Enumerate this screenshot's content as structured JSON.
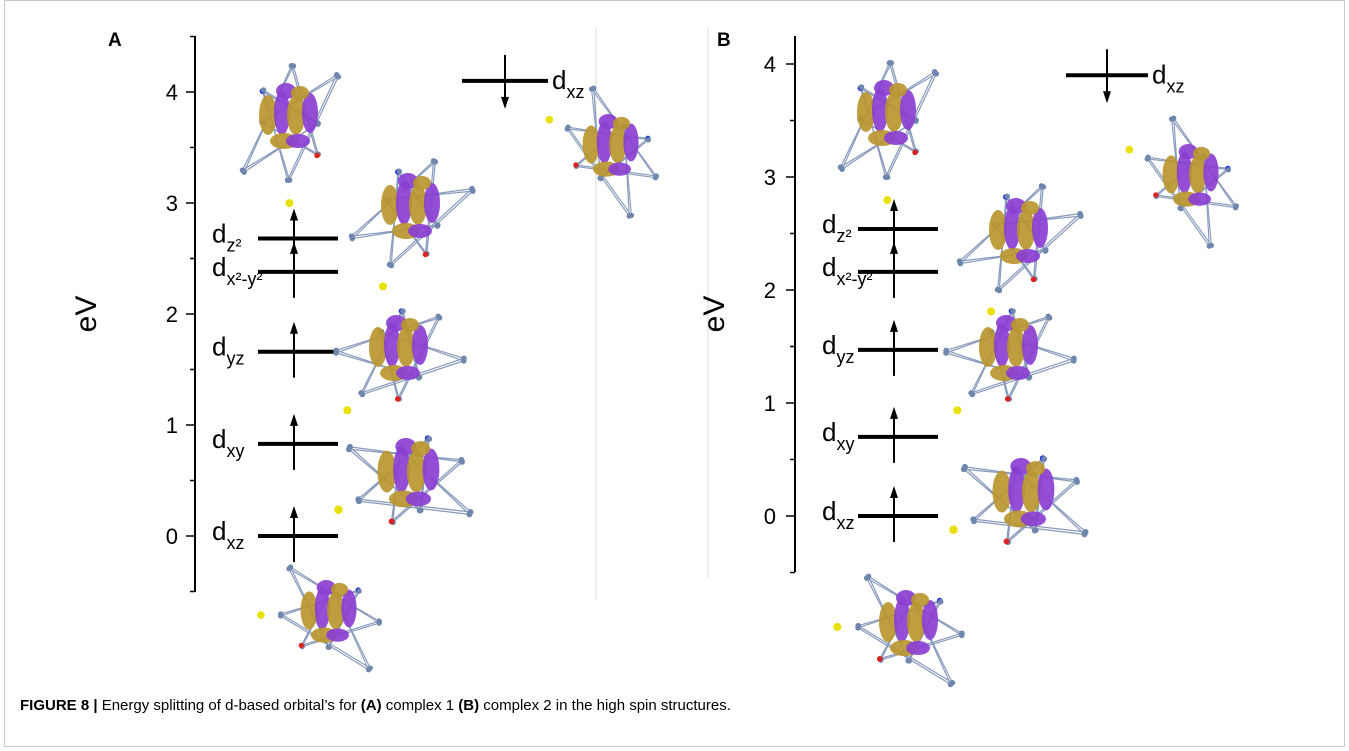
{
  "figure": {
    "panels": [
      {
        "letter": "A",
        "axis_label": "eV",
        "ticks": [
          "0",
          "1",
          "2",
          "3",
          "4"
        ],
        "levels": [
          {
            "main": "d",
            "sub": "xz",
            "energy": 0.0,
            "spin": "up"
          },
          {
            "main": "d",
            "sub": "xy",
            "energy": 0.83,
            "spin": "up"
          },
          {
            "main": "d",
            "sub": "yz",
            "energy": 1.66,
            "spin": "up"
          },
          {
            "main": "d",
            "sub": "x²-y²",
            "energy": 2.38,
            "spin": "up"
          },
          {
            "main": "d",
            "sub": "z²",
            "energy": 2.68,
            "spin": "up"
          },
          {
            "main": "d",
            "sub": "xz",
            "energy": 4.1,
            "spin": "down"
          }
        ]
      },
      {
        "letter": "B",
        "axis_label": "eV",
        "ticks": [
          "0",
          "1",
          "2",
          "3",
          "4"
        ],
        "levels": [
          {
            "main": "d",
            "sub": "xz",
            "energy": 0.0,
            "spin": "up"
          },
          {
            "main": "d",
            "sub": "xy",
            "energy": 0.7,
            "spin": "up"
          },
          {
            "main": "d",
            "sub": "yz",
            "energy": 1.47,
            "spin": "up"
          },
          {
            "main": "d",
            "sub": "x²-y²",
            "energy": 2.16,
            "spin": "up"
          },
          {
            "main": "d",
            "sub": "z²",
            "energy": 2.54,
            "spin": "up"
          },
          {
            "main": "d",
            "sub": "xz",
            "energy": 3.9,
            "spin": "down"
          }
        ]
      }
    ],
    "colors": {
      "lobe_gold": "#b8962e",
      "lobe_purple": "#8a3fd1",
      "atom": "#6f86ad",
      "sulfur": "#e8e000",
      "nitrogen": "#2233dd",
      "oxygen": "#dd2222"
    }
  },
  "caption": {
    "label": "FIGURE 8 |",
    "text_1": " Energy splitting of d-based orbital’s for ",
    "a_ref": "(A)",
    "text_2": " complex 1 ",
    "b_ref": "(B)",
    "text_3": " complex 2 in the high spin structures."
  }
}
